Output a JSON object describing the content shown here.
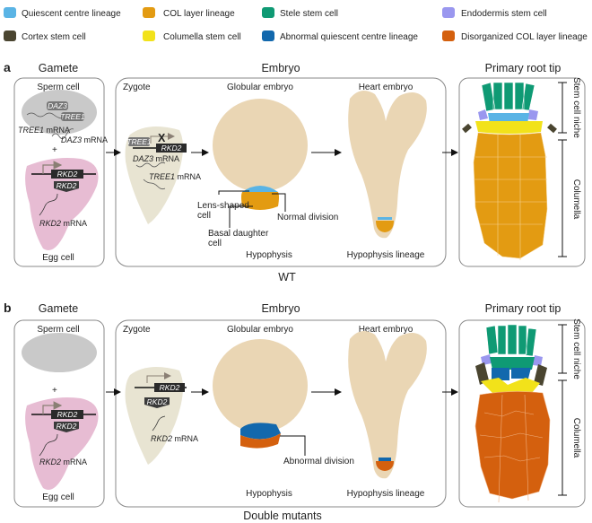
{
  "legend": [
    {
      "label": "Quiescent centre lineage",
      "color": "#5ab4e5"
    },
    {
      "label": "COL layer lineage",
      "color": "#e39b12"
    },
    {
      "label": "Stele stem cell",
      "color": "#0f9a74"
    },
    {
      "label": "Endodermis stem cell",
      "color": "#9a97ef"
    },
    {
      "label": "Cortex stem cell",
      "color": "#4a4530"
    },
    {
      "label": "Columella stem cell",
      "color": "#f2e21a"
    },
    {
      "label": "Abnormal quiescent centre lineage",
      "color": "#1268ad"
    },
    {
      "label": "Disorganized COL layer lineage",
      "color": "#d4600e"
    }
  ],
  "panel_a": {
    "letter": "a",
    "gamete": "Gamete",
    "embryo": "Embryo",
    "root": "Primary root tip",
    "sperm": "Sperm cell",
    "egg": "Egg cell",
    "daz3": "DAZ3",
    "tree1": "TREE1",
    "tree1_mrna": "TREE1",
    "daz3_mrna": "DAZ3",
    "mrna": "mRNA",
    "rkd2": "RKD2",
    "rkd2_mrna": "RKD2",
    "plus": "+",
    "zygote": "Zygote",
    "x_mark": "X",
    "globular": "Globular embryo",
    "heart": "Heart embryo",
    "lens": "Lens-shaped",
    "cell": "cell",
    "basal": "Basal daughter",
    "normal": "Normal division",
    "hypophysis": "Hypophysis",
    "hyp_lineage": "Hypophysis lineage",
    "stem_niche": "Stem cell niche",
    "columella": "Columella",
    "caption": "WT"
  },
  "panel_b": {
    "letter": "b",
    "gamete": "Gamete",
    "embryo": "Embryo",
    "root": "Primary root tip",
    "sperm": "Sperm cell",
    "egg": "Egg cell",
    "rkd2": "RKD2",
    "rkd2_mrna": "RKD2",
    "mrna": "mRNA",
    "plus": "+",
    "zygote": "Zygote",
    "globular": "Globular embryo",
    "heart": "Heart embryo",
    "abnormal": "Abnormal division",
    "hypophysis": "Hypophysis",
    "hyp_lineage": "Hypophysis lineage",
    "stem_niche": "Stem cell niche",
    "columella": "Columella",
    "caption": "Double mutants"
  }
}
